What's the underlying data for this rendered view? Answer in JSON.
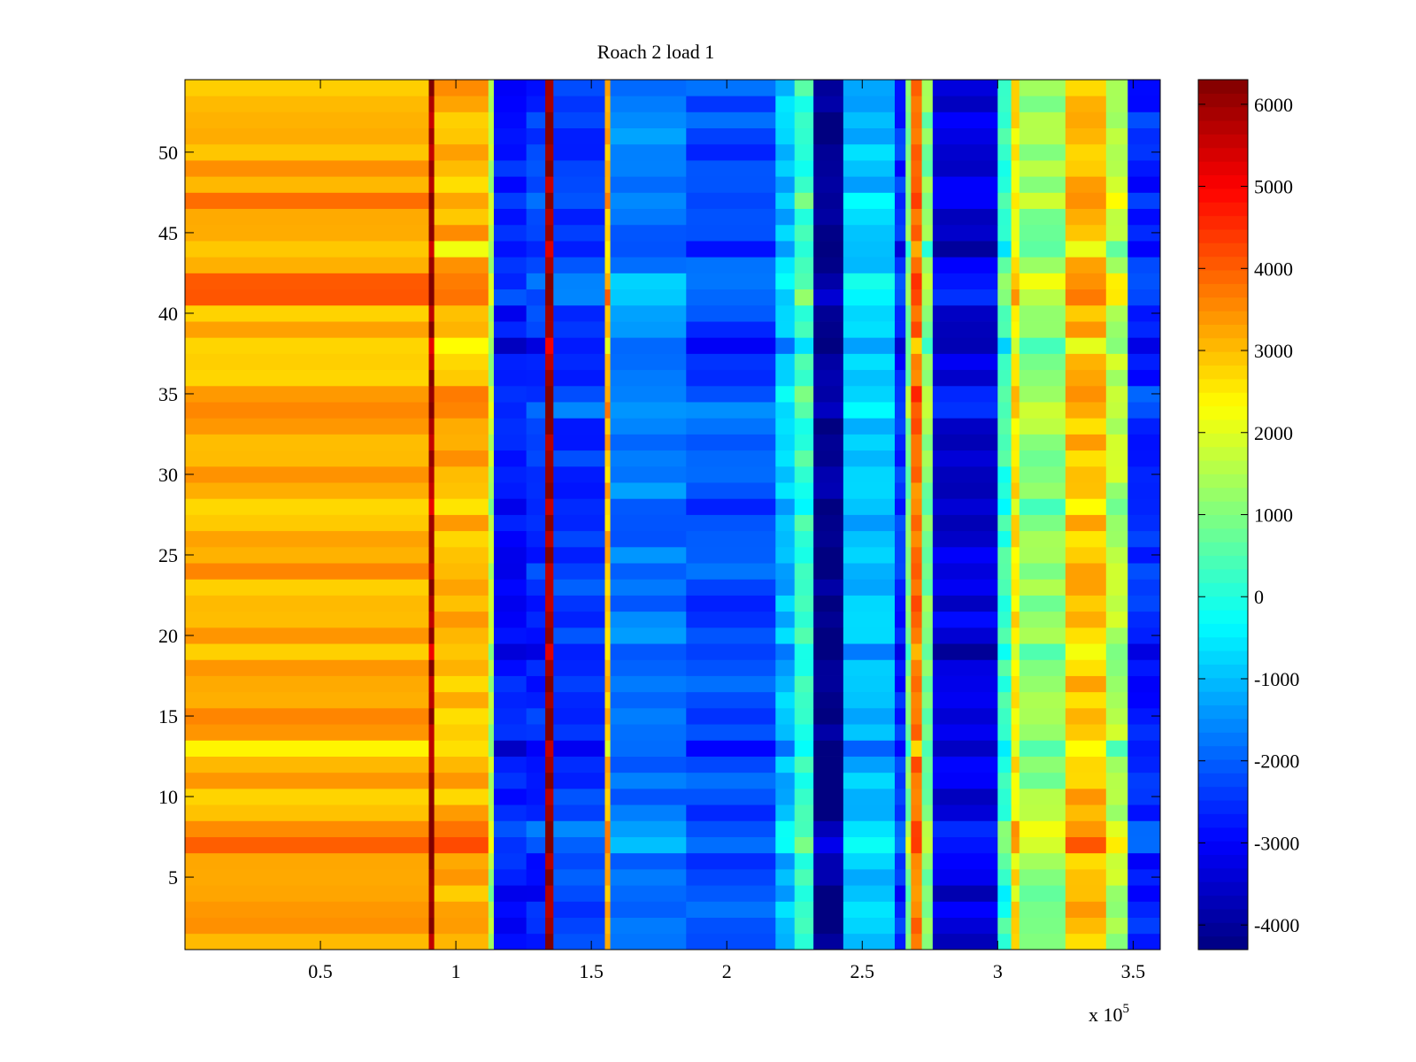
{
  "chart_data": {
    "type": "heatmap",
    "title": "Roach 2 load 1",
    "xlabel": "",
    "ylabel": "",
    "x_exponent_label": "x 10",
    "x_exponent_power": "5",
    "x_range": [
      0,
      360000
    ],
    "y_range": [
      0.5,
      54.5
    ],
    "xticks": [
      50000,
      100000,
      150000,
      200000,
      250000,
      300000,
      350000
    ],
    "xtick_labels": [
      "0.5",
      "1",
      "1.5",
      "2",
      "2.5",
      "3",
      "3.5"
    ],
    "yticks": [
      5,
      10,
      15,
      20,
      25,
      30,
      35,
      40,
      45,
      50
    ],
    "ytick_labels": [
      "5",
      "10",
      "15",
      "20",
      "25",
      "30",
      "35",
      "40",
      "45",
      "50"
    ],
    "rows": 54,
    "colormap": "jet",
    "color_range": [
      -4300,
      6300
    ],
    "colorbar_ticks": [
      6000,
      5000,
      4000,
      3000,
      2000,
      1000,
      0,
      -1000,
      -2000,
      -3000,
      -4000
    ],
    "colorbar_tick_labels": [
      "6000",
      "5000",
      "4000",
      "3000",
      "2000",
      "1000",
      "0",
      "-1000",
      "-2000",
      "-3000",
      "-4000"
    ],
    "column_profile": [
      {
        "x": [
          0,
          90000
        ],
        "value": 3200
      },
      {
        "x": [
          90000,
          92000
        ],
        "value": 6000
      },
      {
        "x": [
          92000,
          112000
        ],
        "value": 3100
      },
      {
        "x": [
          112000,
          114000
        ],
        "value": 1500
      },
      {
        "x": [
          114000,
          126000
        ],
        "value": -2800
      },
      {
        "x": [
          126000,
          133000
        ],
        "value": -2500
      },
      {
        "x": [
          133000,
          136000
        ],
        "value": 6000
      },
      {
        "x": [
          136000,
          155000
        ],
        "value": -2400
      },
      {
        "x": [
          155000,
          157000
        ],
        "value": 3000
      },
      {
        "x": [
          157000,
          185000
        ],
        "value": -1700
      },
      {
        "x": [
          185000,
          218000
        ],
        "value": -2200
      },
      {
        "x": [
          218000,
          225000
        ],
        "value": -1000
      },
      {
        "x": [
          225000,
          232000
        ],
        "value": 200
      },
      {
        "x": [
          232000,
          243000
        ],
        "value": -4200
      },
      {
        "x": [
          243000,
          262000
        ],
        "value": -1000
      },
      {
        "x": [
          262000,
          266000
        ],
        "value": -2600
      },
      {
        "x": [
          266000,
          268000
        ],
        "value": 1000
      },
      {
        "x": [
          268000,
          272000
        ],
        "value": 3800
      },
      {
        "x": [
          272000,
          276000
        ],
        "value": 1000
      },
      {
        "x": [
          276000,
          300000
        ],
        "value": -3300
      },
      {
        "x": [
          300000,
          305000
        ],
        "value": 200
      },
      {
        "x": [
          305000,
          308000
        ],
        "value": 2500
      },
      {
        "x": [
          308000,
          325000
        ],
        "value": 1200
      },
      {
        "x": [
          325000,
          340000
        ],
        "value": 3000
      },
      {
        "x": [
          340000,
          348000
        ],
        "value": 1500
      },
      {
        "x": [
          348000,
          360000
        ],
        "value": -2600
      }
    ],
    "row_offsets": [
      {
        "row": 7,
        "offset": 900
      },
      {
        "row": 8,
        "offset": 600
      },
      {
        "row": 13,
        "offset": -700
      },
      {
        "row": 19,
        "offset": -600
      },
      {
        "row": 28,
        "offset": -400
      },
      {
        "row": 34,
        "offset": 500
      },
      {
        "row": 35,
        "offset": 500
      },
      {
        "row": 38,
        "offset": -600
      },
      {
        "row": 41,
        "offset": 600
      },
      {
        "row": 42,
        "offset": 600
      },
      {
        "row": 44,
        "offset": -500
      },
      {
        "row": 47,
        "offset": 400
      },
      {
        "row": 4,
        "offset": -300
      }
    ]
  }
}
